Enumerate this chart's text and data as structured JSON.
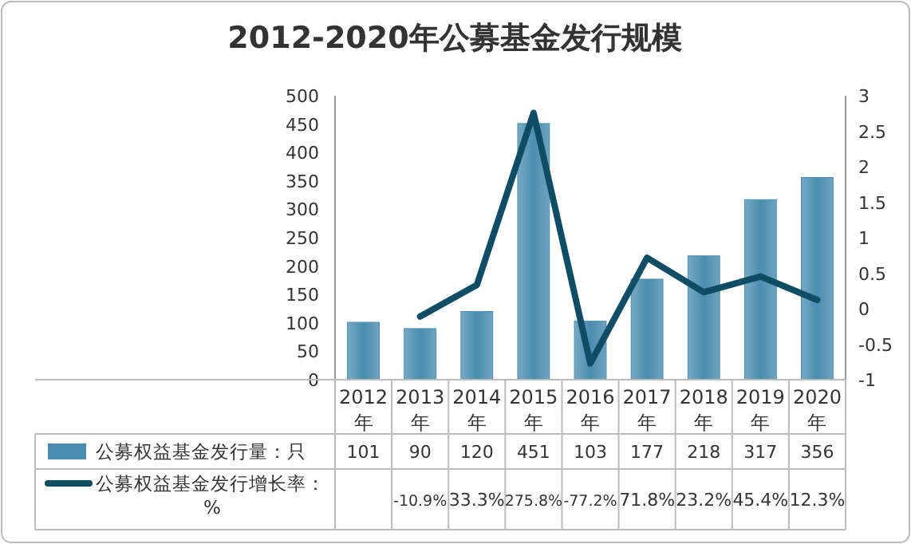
{
  "chart_data": {
    "type": "bar",
    "title": "2012-2020年公募基金发行规模",
    "categories": [
      "2012年",
      "2013年",
      "2014年",
      "2015年",
      "2016年",
      "2017年",
      "2018年",
      "2019年",
      "2020年"
    ],
    "series": [
      {
        "name": "公募权益基金发行量：只",
        "color": "#4a8db0",
        "values": [
          101,
          90,
          120,
          451,
          103,
          177,
          218,
          317,
          356
        ],
        "value_labels": [
          "101",
          "90",
          "120",
          "451",
          "103",
          "177",
          "218",
          "317",
          "356"
        ]
      },
      {
        "name": "公募权益基金发行增长率：%",
        "type": "line",
        "axis": "y2",
        "color": "#0e4d64",
        "values": [
          null,
          -0.109,
          0.333,
          2.758,
          -0.772,
          0.718,
          0.232,
          0.454,
          0.123
        ],
        "value_labels": [
          null,
          "-10.9%",
          "33.3%",
          "275.8%",
          "-77.2%",
          "71.8%",
          "23.2%",
          "45.4%",
          "12.3%"
        ]
      }
    ],
    "ylim": [
      0,
      500
    ],
    "yticks": [
      0,
      50,
      100,
      150,
      200,
      250,
      300,
      350,
      400,
      450,
      500
    ],
    "y2lim": [
      -1,
      3
    ],
    "y2ticks": [
      -1,
      -0.5,
      0,
      0.5,
      1,
      1.5,
      2,
      2.5,
      3
    ],
    "legend": "bottom"
  }
}
